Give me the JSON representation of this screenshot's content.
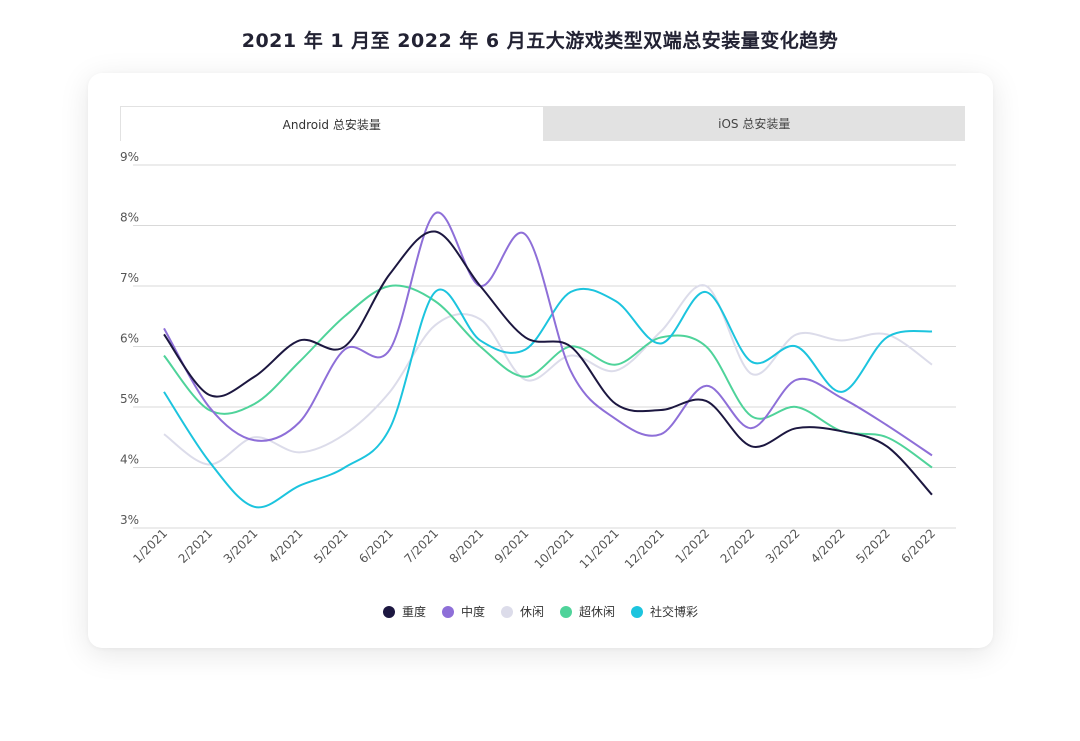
{
  "title": "2021 年 1 月至 2022 年 6 月五大游戏类型双端总安装量变化趋势",
  "tabs": [
    {
      "label": "Android 总安装量",
      "active": true
    },
    {
      "label": "iOS 总安装量",
      "active": false
    }
  ],
  "chart_data": {
    "type": "line",
    "title": "2021 年 1 月至 2022 年 6 月五大游戏类型双端总安装量变化趋势",
    "xlabel": "",
    "ylabel": "",
    "ylim": [
      3,
      9
    ],
    "y_ticks": [
      "3%",
      "4%",
      "5%",
      "6%",
      "7%",
      "8%",
      "9%"
    ],
    "grid": true,
    "legend_position": "bottom",
    "categories": [
      "1/2021",
      "2/2021",
      "3/2021",
      "4/2021",
      "5/2021",
      "6/2021",
      "7/2021",
      "8/2021",
      "9/2021",
      "10/2021",
      "11/2021",
      "12/2021",
      "1/2022",
      "2/2022",
      "3/2022",
      "4/2022",
      "5/2022",
      "6/2022"
    ],
    "series": [
      {
        "name": "重度",
        "color": "#1c1740",
        "values": [
          6.2,
          5.2,
          5.5,
          6.1,
          6.0,
          7.2,
          7.9,
          7.0,
          6.15,
          6.0,
          5.05,
          4.95,
          5.1,
          4.35,
          4.65,
          4.6,
          4.35,
          3.55
        ]
      },
      {
        "name": "中度",
        "color": "#8e6fd8",
        "values": [
          6.3,
          5.0,
          4.45,
          4.75,
          5.95,
          5.95,
          8.2,
          7.0,
          7.85,
          5.6,
          4.8,
          4.55,
          5.35,
          4.65,
          5.45,
          5.15,
          4.7,
          4.2
        ]
      },
      {
        "name": "休闲",
        "color": "#dcdcea",
        "values": [
          4.55,
          4.05,
          4.5,
          4.25,
          4.55,
          5.25,
          6.35,
          6.45,
          5.45,
          5.85,
          5.6,
          6.25,
          7.0,
          5.55,
          6.2,
          6.1,
          6.2,
          5.7
        ]
      },
      {
        "name": "超休闲",
        "color": "#4fd39a",
        "values": [
          5.85,
          4.95,
          5.05,
          5.75,
          6.5,
          7.0,
          6.75,
          6.0,
          5.5,
          6.0,
          5.7,
          6.15,
          6.0,
          4.85,
          5.0,
          4.6,
          4.5,
          4.0
        ]
      },
      {
        "name": "社交博彩",
        "color": "#1cc4de",
        "values": [
          5.25,
          4.1,
          3.35,
          3.7,
          4.0,
          4.65,
          6.9,
          6.1,
          5.95,
          6.9,
          6.75,
          6.05,
          6.9,
          5.75,
          6.0,
          5.25,
          6.15,
          6.25
        ]
      }
    ]
  }
}
